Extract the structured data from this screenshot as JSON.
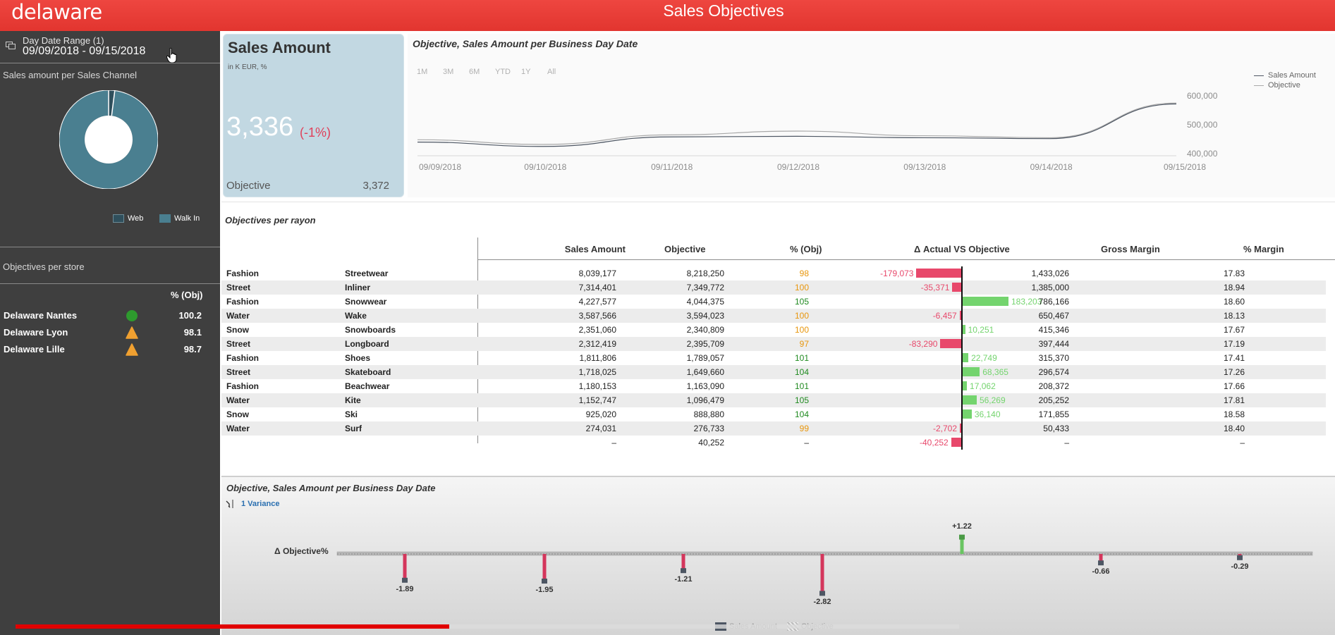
{
  "app": {
    "logo": "delaware",
    "title": "Sales Objectives"
  },
  "sidebar": {
    "date_range_label": "Day Date Range (1)",
    "date_range_value": "09/09/2018 - 09/15/2018",
    "channel_title": "Sales amount per Sales Channel",
    "channel_data": [
      {
        "name": "Web",
        "share": 0.02,
        "color": "#2f4f5c"
      },
      {
        "name": "Walk In",
        "share": 0.98,
        "color": "#4a7f90"
      }
    ],
    "legend_web": "Web",
    "legend_walkin": "Walk In",
    "stores_title": "Objectives per store",
    "stores_header": "% (Obj)",
    "stores": [
      {
        "name": "Delaware Nantes",
        "status": "green-circle",
        "value": "100.2"
      },
      {
        "name": "Delaware Lyon",
        "status": "orange-triangle",
        "value": "98.1"
      },
      {
        "name": "Delaware Lille",
        "status": "orange-triangle",
        "value": "98.7"
      }
    ]
  },
  "kpi": {
    "title": "Sales Amount",
    "subtitle": "in K EUR, %",
    "value": "3,336",
    "delta": "(-1%)",
    "objective_label": "Objective",
    "objective_value": "3,372"
  },
  "linechart": {
    "title": "Objective, Sales Amount per Business Day Date",
    "range_buttons": [
      "1M",
      "3M",
      "6M",
      "YTD",
      "1Y",
      "All"
    ],
    "legend": [
      {
        "name": "Sales Amount",
        "color": "#4d5663"
      },
      {
        "name": "Objective",
        "color": "#a9a9a9"
      }
    ],
    "chart_data": {
      "type": "line",
      "x": [
        "09/09/2018",
        "09/10/2018",
        "09/11/2018",
        "09/12/2018",
        "09/13/2018",
        "09/14/2018",
        "09/15/2018"
      ],
      "y_ticks": [
        "400,000",
        "500,000",
        "600,000"
      ],
      "ylim": [
        400000,
        600000
      ],
      "series": [
        {
          "name": "Sales Amount",
          "values": [
            440000,
            425000,
            458000,
            460000,
            455000,
            452000,
            572000
          ]
        },
        {
          "name": "Objective",
          "values": [
            448000,
            432000,
            465000,
            478000,
            462000,
            455000,
            575000
          ]
        }
      ]
    }
  },
  "table": {
    "title": "Objectives per rayon",
    "headers": {
      "sales": "Sales Amount",
      "objective": "Objective",
      "pct": "% (Obj)",
      "delta": "Δ Actual VS Objective",
      "gm": "Gross Margin",
      "margin": "% Margin"
    },
    "colors": {
      "negative": "#e8486b",
      "positive": "#74d46e",
      "pct_high": "#1f8a1f",
      "pct_low": "#e8960c"
    },
    "rows": [
      {
        "cat": "Fashion",
        "sub": "Streetwear",
        "sales": "8,039,177",
        "objective": "8,218,250",
        "pct": "98",
        "delta": -179073,
        "delta_label": "-179,073",
        "gm": "1,433,026",
        "margin": "17.83"
      },
      {
        "cat": "Street",
        "sub": "Inliner",
        "sales": "7,314,401",
        "objective": "7,349,772",
        "pct": "100",
        "delta": -35371,
        "delta_label": "-35,371",
        "gm": "1,385,000",
        "margin": "18.94"
      },
      {
        "cat": "Fashion",
        "sub": "Snowwear",
        "sales": "4,227,577",
        "objective": "4,044,375",
        "pct": "105",
        "delta": 183203,
        "delta_label": "183,203",
        "gm": "786,166",
        "margin": "18.60"
      },
      {
        "cat": "Water",
        "sub": "Wake",
        "sales": "3,587,566",
        "objective": "3,594,023",
        "pct": "100",
        "delta": -6457,
        "delta_label": "-6,457",
        "gm": "650,467",
        "margin": "18.13"
      },
      {
        "cat": "Snow",
        "sub": "Snowboards",
        "sales": "2,351,060",
        "objective": "2,340,809",
        "pct": "100",
        "delta": 10251,
        "delta_label": "10,251",
        "gm": "415,346",
        "margin": "17.67"
      },
      {
        "cat": "Street",
        "sub": "Longboard",
        "sales": "2,312,419",
        "objective": "2,395,709",
        "pct": "97",
        "delta": -83290,
        "delta_label": "-83,290",
        "gm": "397,444",
        "margin": "17.19"
      },
      {
        "cat": "Fashion",
        "sub": "Shoes",
        "sales": "1,811,806",
        "objective": "1,789,057",
        "pct": "101",
        "delta": 22749,
        "delta_label": "22,749",
        "gm": "315,370",
        "margin": "17.41"
      },
      {
        "cat": "Street",
        "sub": "Skateboard",
        "sales": "1,718,025",
        "objective": "1,649,660",
        "pct": "104",
        "delta": 68365,
        "delta_label": "68,365",
        "gm": "296,574",
        "margin": "17.26"
      },
      {
        "cat": "Fashion",
        "sub": "Beachwear",
        "sales": "1,180,153",
        "objective": "1,163,090",
        "pct": "101",
        "delta": 17062,
        "delta_label": "17,062",
        "gm": "208,372",
        "margin": "17.66"
      },
      {
        "cat": "Water",
        "sub": "Kite",
        "sales": "1,152,747",
        "objective": "1,096,479",
        "pct": "105",
        "delta": 56269,
        "delta_label": "56,269",
        "gm": "205,252",
        "margin": "17.81"
      },
      {
        "cat": "Snow",
        "sub": "Ski",
        "sales": "925,020",
        "objective": "888,880",
        "pct": "104",
        "delta": 36140,
        "delta_label": "36,140",
        "gm": "171,855",
        "margin": "18.58"
      },
      {
        "cat": "Water",
        "sub": "Surf",
        "sales": "274,031",
        "objective": "276,733",
        "pct": "99",
        "delta": -2702,
        "delta_label": "-2,702",
        "gm": "50,433",
        "margin": "18.40"
      },
      {
        "cat": "",
        "sub": "",
        "sales": "–",
        "objective": "40,252",
        "pct": "–",
        "delta": -40252,
        "delta_label": "-40,252",
        "gm": "–",
        "margin": "–"
      }
    ]
  },
  "variance": {
    "title": "Objective, Sales Amount per Business Day Date",
    "variance_link": "1 Variance",
    "y_label": "Δ Objective%",
    "chart_data": {
      "type": "bar",
      "values": [
        -1.89,
        -1.95,
        -1.21,
        -2.82,
        1.22,
        -0.66,
        -0.29
      ],
      "labels": [
        "-1.89",
        "-1.95",
        "-1.21",
        "-2.82",
        "+1.22",
        "-0.66",
        "-0.29"
      ]
    },
    "legend": [
      {
        "name": "Sales Amount"
      },
      {
        "name": "Objective"
      }
    ]
  },
  "progress": {
    "played_fraction": 0.46
  }
}
